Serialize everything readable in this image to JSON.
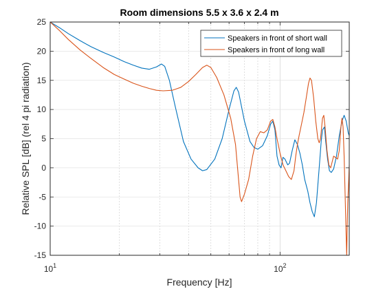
{
  "chart_data": {
    "type": "line",
    "title": "Room dimensions 5.5 x 3.6 x 2.4 m",
    "xlabel": "Frequency [Hz]",
    "ylabel": "Relative SPL [dB] (rel 4 pi radiation)",
    "xscale": "log",
    "xlim": [
      10,
      200
    ],
    "ylim": [
      -15,
      25
    ],
    "x_ticks": [
      {
        "value": 10,
        "base": "10",
        "exp": "1"
      },
      {
        "value": 100,
        "base": "10",
        "exp": "2"
      }
    ],
    "y_ticks": [
      25,
      20,
      15,
      10,
      5,
      0,
      -5,
      -10,
      -15
    ],
    "grid": true,
    "legend_position": "top-right",
    "series": [
      {
        "name": "Speakers in front of short wall",
        "color": "#0072BD",
        "points": [
          [
            10,
            25.0
          ],
          [
            11,
            24.0
          ],
          [
            12,
            23.0
          ],
          [
            13.5,
            21.8
          ],
          [
            15,
            20.8
          ],
          [
            17,
            19.8
          ],
          [
            19,
            19.0
          ],
          [
            21,
            18.2
          ],
          [
            23,
            17.6
          ],
          [
            25,
            17.1
          ],
          [
            27,
            16.9
          ],
          [
            29,
            17.3
          ],
          [
            30.5,
            17.8
          ],
          [
            31.5,
            17.4
          ],
          [
            33,
            15.0
          ],
          [
            35,
            10.5
          ],
          [
            38,
            4.5
          ],
          [
            41,
            1.5
          ],
          [
            44,
            0.0
          ],
          [
            46,
            -0.5
          ],
          [
            48,
            -0.3
          ],
          [
            52,
            1.5
          ],
          [
            56,
            5.0
          ],
          [
            60,
            10.0
          ],
          [
            63,
            13.2
          ],
          [
            64.5,
            13.8
          ],
          [
            66,
            13.0
          ],
          [
            70,
            8.0
          ],
          [
            74,
            4.5
          ],
          [
            77,
            3.5
          ],
          [
            80,
            3.2
          ],
          [
            84,
            3.8
          ],
          [
            88,
            5.5
          ],
          [
            91,
            7.5
          ],
          [
            93,
            8.0
          ],
          [
            95,
            6.5
          ],
          [
            97,
            2.0
          ],
          [
            99,
            0.5
          ],
          [
            101,
            0.0
          ],
          [
            103,
            1.8
          ],
          [
            105,
            1.5
          ],
          [
            108,
            0.5
          ],
          [
            110,
            0.8
          ],
          [
            113,
            3.0
          ],
          [
            116,
            4.8
          ],
          [
            119,
            4.0
          ],
          [
            122,
            2.5
          ],
          [
            125,
            0.5
          ],
          [
            128,
            -2.0
          ],
          [
            132,
            -4.0
          ],
          [
            135,
            -6.0
          ],
          [
            138,
            -7.5
          ],
          [
            141,
            -8.4
          ],
          [
            144,
            -6.0
          ],
          [
            148,
            0.0
          ],
          [
            151,
            4.5
          ],
          [
            153,
            6.5
          ],
          [
            156,
            7.0
          ],
          [
            158,
            4.5
          ],
          [
            161,
            1.5
          ],
          [
            164,
            -0.5
          ],
          [
            167,
            -0.8
          ],
          [
            171,
            -0.2
          ],
          [
            176,
            2.0
          ],
          [
            181,
            5.5
          ],
          [
            186,
            8.0
          ],
          [
            190,
            9.0
          ],
          [
            194,
            8.0
          ],
          [
            198,
            6.0
          ],
          [
            200,
            5.5
          ]
        ]
      },
      {
        "name": "Speakers in front of long wall",
        "color": "#D95319",
        "points": [
          [
            10,
            25.0
          ],
          [
            11,
            23.5
          ],
          [
            12,
            22.0
          ],
          [
            13.5,
            20.2
          ],
          [
            15,
            18.8
          ],
          [
            17,
            17.2
          ],
          [
            19,
            16.0
          ],
          [
            21,
            15.2
          ],
          [
            23,
            14.5
          ],
          [
            25,
            14.0
          ],
          [
            27,
            13.6
          ],
          [
            29,
            13.3
          ],
          [
            31,
            13.2
          ],
          [
            34,
            13.3
          ],
          [
            37,
            13.8
          ],
          [
            40,
            14.8
          ],
          [
            43,
            16.0
          ],
          [
            46,
            17.2
          ],
          [
            48,
            17.6
          ],
          [
            50,
            17.2
          ],
          [
            53,
            15.5
          ],
          [
            57,
            12.5
          ],
          [
            61,
            8.5
          ],
          [
            64,
            4.0
          ],
          [
            66,
            -2.0
          ],
          [
            67,
            -5.0
          ],
          [
            68,
            -5.8
          ],
          [
            70,
            -4.5
          ],
          [
            73,
            -2.0
          ],
          [
            76,
            2.0
          ],
          [
            79,
            5.0
          ],
          [
            82,
            6.2
          ],
          [
            85,
            6.0
          ],
          [
            88,
            6.5
          ],
          [
            91,
            8.0
          ],
          [
            93,
            8.3
          ],
          [
            95,
            7.0
          ],
          [
            97,
            5.0
          ],
          [
            100,
            2.5
          ],
          [
            103,
            0.5
          ],
          [
            106,
            -0.5
          ],
          [
            109,
            -1.5
          ],
          [
            112,
            -2.0
          ],
          [
            115,
            -0.5
          ],
          [
            117,
            2.0
          ],
          [
            119,
            4.0
          ],
          [
            121,
            5.5
          ],
          [
            124,
            7.5
          ],
          [
            127,
            9.5
          ],
          [
            130,
            12.0
          ],
          [
            133,
            14.5
          ],
          [
            135,
            15.4
          ],
          [
            137,
            15.0
          ],
          [
            140,
            12.0
          ],
          [
            143,
            8.0
          ],
          [
            146,
            5.0
          ],
          [
            148,
            4.3
          ],
          [
            150,
            5.0
          ],
          [
            153,
            8.5
          ],
          [
            155,
            9.0
          ],
          [
            157,
            7.0
          ],
          [
            160,
            3.0
          ],
          [
            163,
            0.5
          ],
          [
            166,
            0.0
          ],
          [
            169,
            1.2
          ],
          [
            171,
            2.0
          ],
          [
            174,
            1.8
          ],
          [
            178,
            1.5
          ],
          [
            181,
            3.0
          ],
          [
            184,
            7.0
          ],
          [
            186,
            8.5
          ],
          [
            188,
            7.0
          ],
          [
            190,
            2.0
          ],
          [
            192,
            -5.0
          ],
          [
            194,
            -12.0
          ],
          [
            195,
            -15.0
          ],
          [
            196,
            -10.0
          ],
          [
            197,
            -6.0
          ],
          [
            199,
            -2.0
          ],
          [
            200,
            0.5
          ]
        ]
      }
    ]
  }
}
